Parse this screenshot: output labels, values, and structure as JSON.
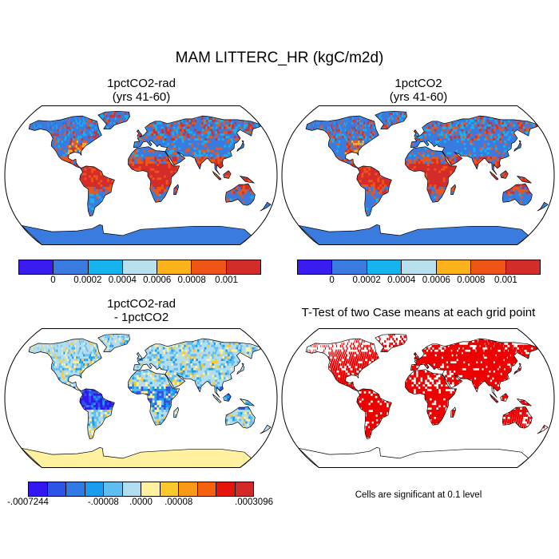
{
  "main_title": "MAM LITTERC_HR (kgC/m2d)",
  "panels": [
    {
      "id": "top-left",
      "title": "1pctCO2-rad\n(yrs 41-60)",
      "scheme": "abs"
    },
    {
      "id": "top-right",
      "title": "1pctCO2\n(yrs 41-60)",
      "scheme": "abs"
    },
    {
      "id": "bottom-left",
      "title": "1pctCO2-rad\n- 1pctCO2",
      "scheme": "diff"
    },
    {
      "id": "bottom-right",
      "title": "T-Test of two Case means at each grid point",
      "scheme": "ttest"
    }
  ],
  "colorbar_abs": {
    "colors": [
      "#3a1cf0",
      "#3a7be0",
      "#16b4ee",
      "#b8e0ee",
      "#fbb21b",
      "#f05518",
      "#d42c28"
    ],
    "labels": [
      "0",
      "0.0002",
      "0.0004",
      "0.0006",
      "0.0008",
      "0.001"
    ]
  },
  "colorbar_diff": {
    "colors": [
      "#3317f0",
      "#2d54e6",
      "#2f7ae5",
      "#1b9def",
      "#60bdf0",
      "#b2dcef",
      "#fff19f",
      "#fbc92c",
      "#f89a16",
      "#f5620e",
      "#e6150c",
      "#d22a2a"
    ],
    "labels": [
      "-.0007244",
      "-.00008",
      ".0000",
      ".00008",
      ".0003096"
    ]
  },
  "significance_note": "Cells are significant at 0.1 level",
  "palette": {
    "ocean": "#ffffff",
    "coast": "#000000",
    "ttest_sig": "#ee0000"
  }
}
